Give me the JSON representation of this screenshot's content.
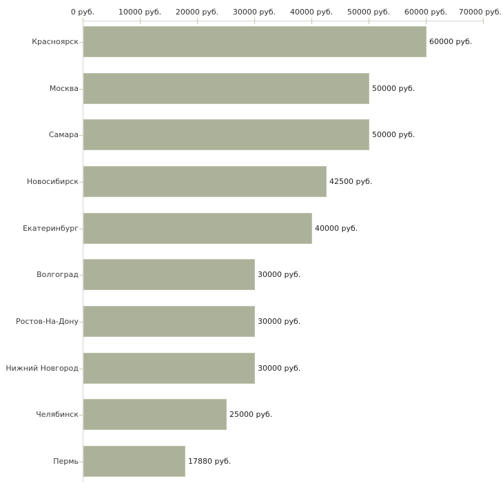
{
  "chart_data": {
    "type": "bar",
    "orientation": "horizontal",
    "categories": [
      "Красноярск",
      "Москва",
      "Самара",
      "Новосибирск",
      "Екатеринбург",
      "Волгоград",
      "Ростов-На-Дону",
      "Нижний Новгород",
      "Челябинск",
      "Пермь"
    ],
    "values": [
      60000,
      50000,
      50000,
      42500,
      40000,
      30000,
      30000,
      30000,
      25000,
      17880
    ],
    "value_labels": [
      "60000 руб.",
      "50000 руб.",
      "50000 руб.",
      "42500 руб.",
      "40000 руб.",
      "30000 руб.",
      "30000 руб.",
      "30000 руб.",
      "25000 руб.",
      "17880 руб."
    ],
    "xlabel": "",
    "ylabel": "",
    "title": "",
    "x_axis": {
      "position": "top",
      "min": 0,
      "max": 70000,
      "ticks": [
        0,
        10000,
        20000,
        30000,
        40000,
        50000,
        60000,
        70000
      ],
      "tick_labels": [
        "0 руб.",
        "10000 руб.",
        "20000 руб.",
        "30000 руб.",
        "40000 руб.",
        "50000 руб.",
        "60000 руб.",
        "70000 руб."
      ]
    },
    "grid": false,
    "legend": false,
    "colors": {
      "bar_fill": "#acb29a",
      "bar_border": "#c0c4ae",
      "axis_line": "#d3d3d3",
      "tick_mark": "#c6c6aa",
      "background": "#ffffff",
      "category_label": "#3c3c3c",
      "value_label": "#1c1c1c",
      "tick_label": "#2e2e2e"
    }
  }
}
